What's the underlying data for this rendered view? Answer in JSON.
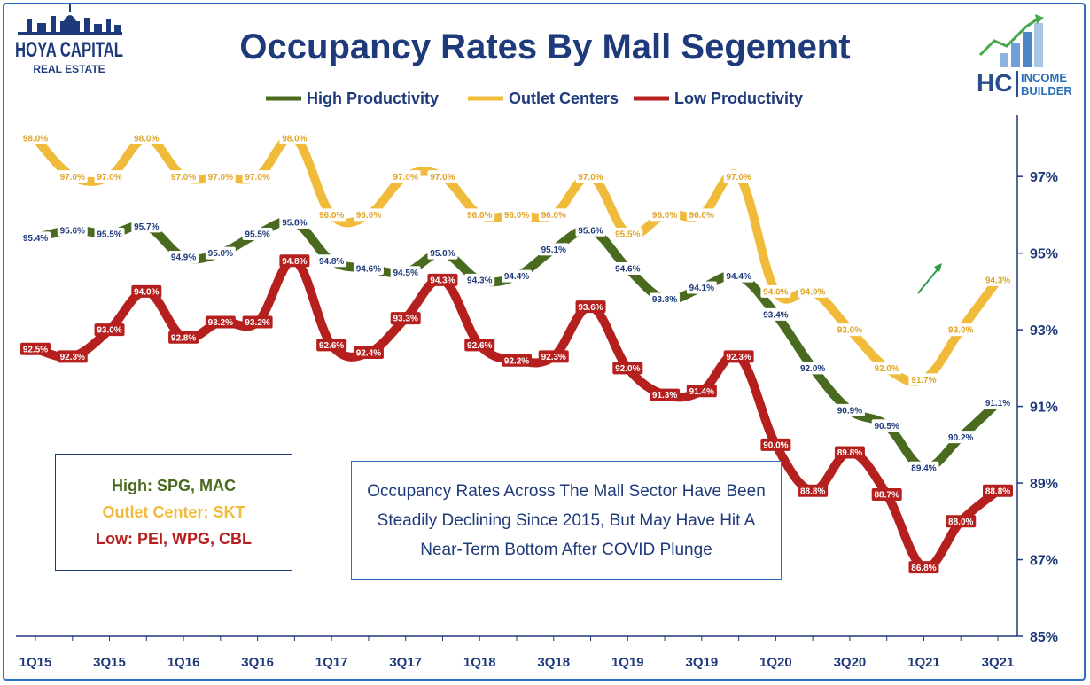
{
  "chart_data": {
    "type": "line",
    "title": "Occupancy Rates By Mall Segement",
    "x": [
      "1Q15",
      "2Q15",
      "3Q15",
      "4Q15",
      "1Q16",
      "2Q16",
      "3Q16",
      "4Q16",
      "1Q17",
      "2Q17",
      "3Q17",
      "4Q17",
      "1Q18",
      "2Q18",
      "3Q18",
      "4Q18",
      "1Q19",
      "2Q19",
      "3Q19",
      "4Q19",
      "1Q20",
      "2Q20",
      "3Q20",
      "4Q20",
      "1Q21",
      "2Q21",
      "3Q21"
    ],
    "x_tick_labels": [
      "1Q15",
      "3Q15",
      "1Q16",
      "3Q16",
      "1Q17",
      "3Q17",
      "1Q18",
      "3Q18",
      "1Q19",
      "3Q19",
      "1Q20",
      "3Q20",
      "1Q21",
      "3Q21"
    ],
    "y_tick_labels": [
      "85%",
      "87%",
      "89%",
      "91%",
      "93%",
      "95%",
      "97%"
    ],
    "ylim": [
      85,
      98.6
    ],
    "y_ticks": [
      85,
      87,
      89,
      91,
      93,
      95,
      97
    ],
    "axis_position": "right",
    "grid": false,
    "legend_position": "top",
    "series": [
      {
        "name": "High Productivity",
        "color": "#4a6b1f",
        "label_bg": "#ffffff",
        "label_color": "#1f3a7a",
        "values": [
          95.4,
          95.6,
          95.5,
          95.7,
          94.9,
          95.0,
          95.5,
          95.8,
          94.8,
          94.6,
          94.5,
          95.0,
          94.3,
          94.4,
          95.1,
          95.6,
          94.6,
          93.8,
          94.1,
          94.4,
          93.4,
          92.0,
          90.9,
          90.5,
          89.4,
          90.2,
          91.1
        ],
        "labels": [
          "95.4%",
          "95.6%",
          "95.5%",
          "95.7%",
          "94.9%",
          "95.0%",
          "95.5%",
          "95.8%",
          "94.8%",
          "94.6%",
          "94.5%",
          "95.0%",
          "94.3%",
          "94.4%",
          "95.1%",
          "95.6%",
          "94.6%",
          "93.8%",
          "94.1%",
          "94.4%",
          "93.4%",
          "92.0%",
          "90.9%",
          "90.5%",
          "89.4%",
          "90.2%",
          "91.1%"
        ]
      },
      {
        "name": "Outlet Centers",
        "color": "#f0bb3a",
        "label_bg": "#ffffff",
        "label_color": "#e0a427",
        "values": [
          98.0,
          97.0,
          97.0,
          98.0,
          97.0,
          97.0,
          97.0,
          98.0,
          96.0,
          96.0,
          97.0,
          97.0,
          96.0,
          96.0,
          96.0,
          97.0,
          95.5,
          96.0,
          96.0,
          97.0,
          94.0,
          94.0,
          93.0,
          92.0,
          91.7,
          93.0,
          94.3
        ],
        "labels": [
          "98.0%",
          "97.0%",
          "97.0%",
          "98.0%",
          "97.0%",
          "97.0%",
          "97.0%",
          "98.0%",
          "96.0%",
          "96.0%",
          "97.0%",
          "97.0%",
          "96.0%",
          "96.0%",
          "96.0%",
          "97.0%",
          "95.5%",
          "96.0%",
          "96.0%",
          "97.0%",
          "94.0%",
          "94.0%",
          "93.0%",
          "92.0%",
          "91.7%",
          "93.0%",
          "94.3%"
        ]
      },
      {
        "name": "Low Productivity",
        "color": "#b5201f",
        "label_bg": "#b5201f",
        "label_color": "#ffffff",
        "values": [
          92.5,
          92.3,
          93.0,
          94.0,
          92.8,
          93.2,
          93.2,
          94.8,
          92.6,
          92.4,
          93.3,
          94.3,
          92.6,
          92.2,
          92.3,
          93.6,
          92.0,
          91.3,
          91.4,
          92.3,
          90.0,
          88.8,
          89.8,
          88.7,
          86.8,
          88.0,
          88.8
        ],
        "labels": [
          "92.5%",
          "92.3%",
          "93.0%",
          "94.0%",
          "92.8%",
          "93.2%",
          "93.2%",
          "94.8%",
          "92.6%",
          "92.4%",
          "93.3%",
          "94.3%",
          "92.6%",
          "92.2%",
          "92.3%",
          "93.6%",
          "92.0%",
          "91.3%",
          "91.4%",
          "92.3%",
          "90.0%",
          "88.8%",
          "89.8%",
          "88.7%",
          "86.8%",
          "88.0%",
          "88.8%"
        ]
      }
    ]
  },
  "logo_left": {
    "line1": "HOYA CAPITAL",
    "line2": "REAL ESTATE"
  },
  "logo_right": {
    "mark": "HC",
    "line1": "INCOME",
    "line2": "BUILDER"
  },
  "box_companies": {
    "high": "High: SPG, MAC",
    "high_color": "#4a6b1f",
    "outlet": "Outlet Center: SKT",
    "outlet_color": "#f0bb3a",
    "low": "Low: PEI, WPG, CBL",
    "low_color": "#b5201f"
  },
  "box_note": {
    "text": "Occupancy Rates Across The Mall Sector Have Been Steadily Declining Since 2015, But May Have Hit A Near-Term Bottom After COVID Plunge"
  },
  "colors": {
    "navy": "#1f3a7a",
    "frame_blue": "#2d6fc4",
    "arrow_green": "#2e9a4a"
  }
}
